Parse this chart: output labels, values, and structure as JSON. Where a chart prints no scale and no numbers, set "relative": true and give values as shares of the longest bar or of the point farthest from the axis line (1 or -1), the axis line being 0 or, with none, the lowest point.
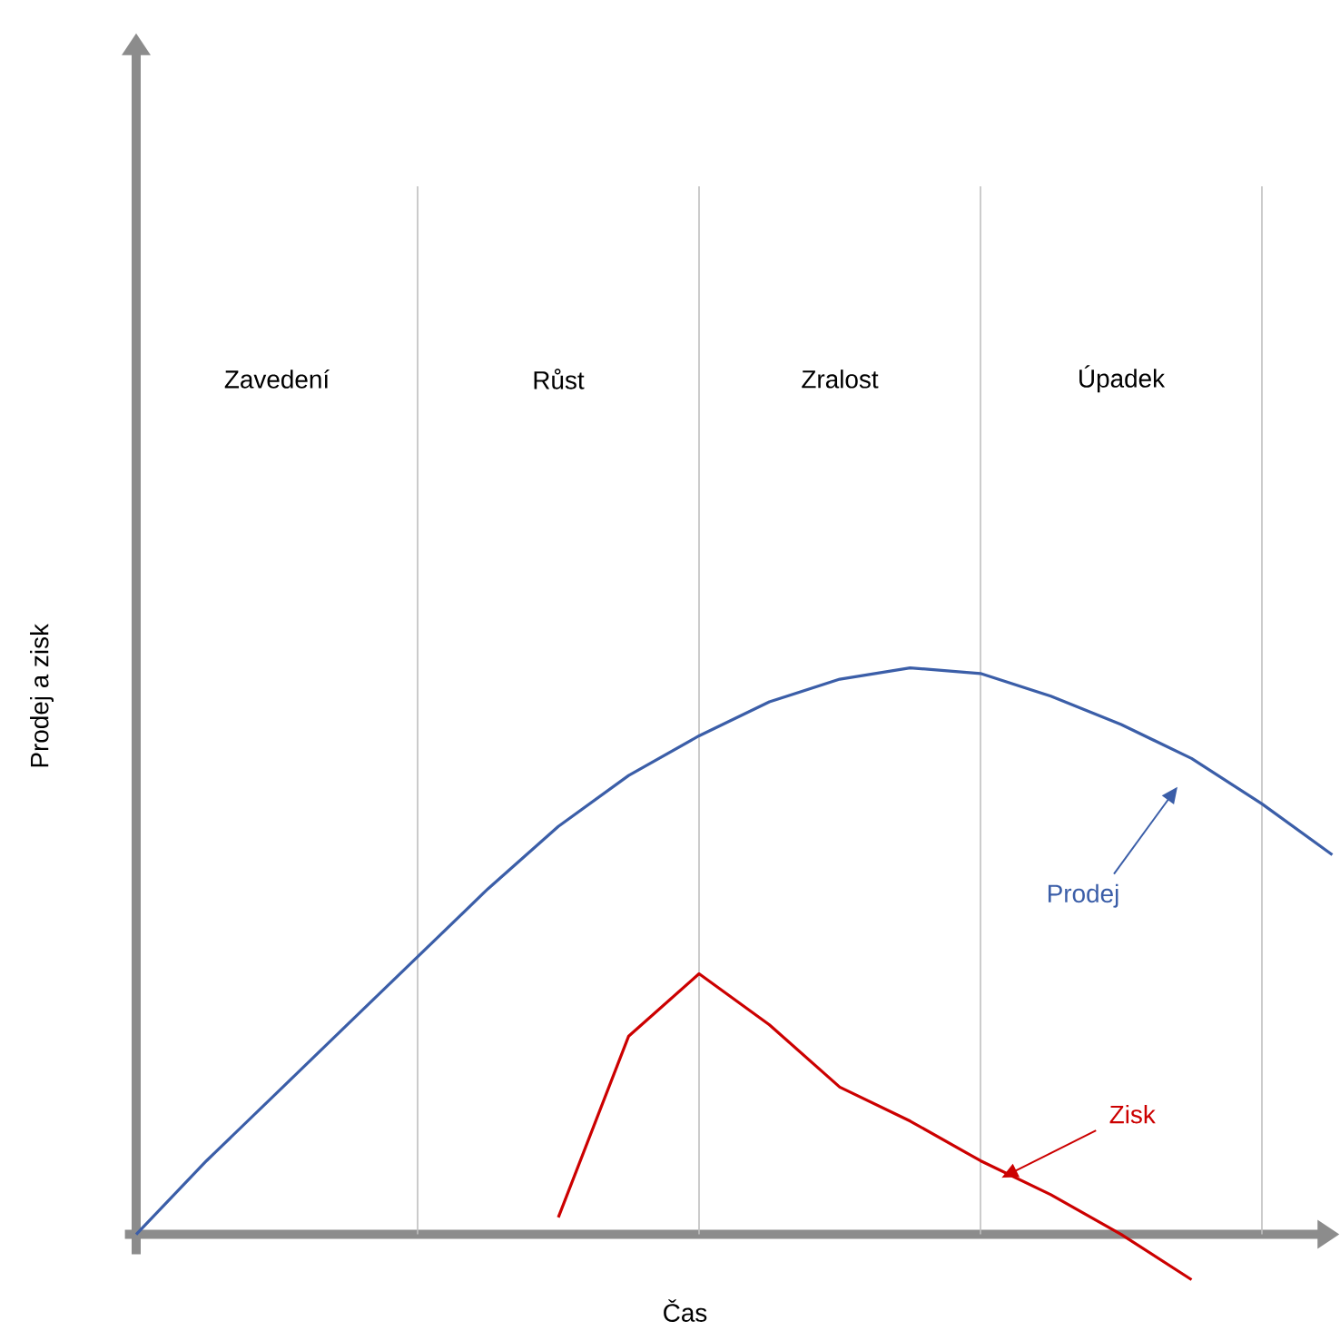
{
  "chart_data": {
    "type": "line",
    "relative": true,
    "xlabel": "Čas",
    "ylabel": "Prodej a zisk",
    "marker": "none",
    "line_style": "solid",
    "categories": [
      null,
      null,
      null,
      null,
      null,
      null,
      null,
      null,
      null,
      null,
      null,
      null,
      null,
      null,
      null,
      null,
      null,
      null
    ],
    "series": [
      {
        "name": "Prodej",
        "color": "#3b5ea8",
        "values": [
          0.0,
          0.13,
          0.25,
          0.37,
          0.49,
          0.61,
          0.72,
          0.81,
          0.88,
          0.94,
          0.98,
          1.0,
          0.99,
          0.95,
          0.9,
          0.84,
          0.76,
          0.67
        ]
      },
      {
        "name": "Zisk",
        "color": "#cc0000",
        "values": [
          null,
          null,
          null,
          null,
          null,
          null,
          0.03,
          0.35,
          0.46,
          0.37,
          0.26,
          0.2,
          0.13,
          0.07,
          0.0,
          -0.08,
          null,
          null
        ]
      }
    ],
    "grid": "x",
    "annotations": [
      "Zavedení",
      "Růst",
      "Zralost",
      "Úpadek"
    ]
  }
}
